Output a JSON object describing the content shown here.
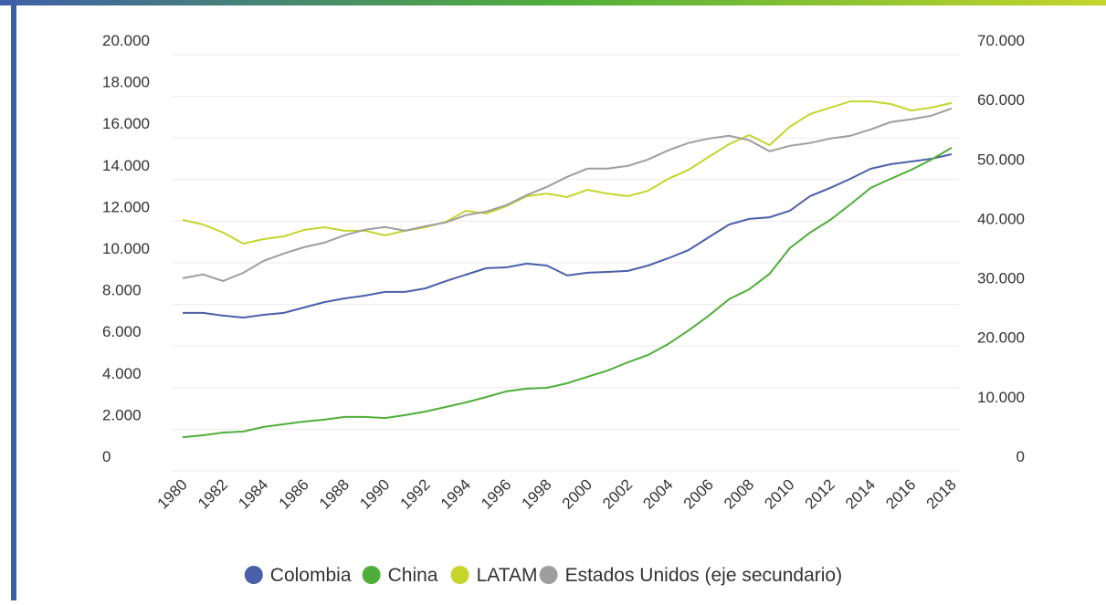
{
  "chart_data": {
    "type": "line",
    "categories": [
      "1980",
      null,
      "1982",
      null,
      "1984",
      null,
      "1986",
      null,
      "1988",
      null,
      "1990",
      null,
      "1992",
      null,
      "1994",
      null,
      "1996",
      null,
      "1998",
      null,
      "2000",
      null,
      "2002",
      null,
      "2004",
      null,
      "2006",
      null,
      "2008",
      null,
      "2010",
      null,
      "2012",
      null,
      "2014",
      null,
      "2016",
      null,
      "2018"
    ],
    "series": [
      {
        "name": "Colombia",
        "color": "#4a5fa8",
        "values": [
          7590,
          7590,
          7460,
          7370,
          7500,
          7590,
          7850,
          8110,
          8290,
          8420,
          8600,
          8600,
          8770,
          9120,
          9430,
          9740,
          9780,
          9960,
          9870,
          9390,
          9520,
          9560,
          9610,
          9870,
          10220,
          10610,
          11230,
          11840,
          12110,
          12190,
          12500,
          13200,
          13600,
          14040,
          14520,
          14740,
          14870,
          15000,
          15220
        ]
      },
      {
        "name": "China",
        "color": "#4fae3a",
        "values": [
          1620,
          1710,
          1840,
          1890,
          2110,
          2240,
          2370,
          2460,
          2590,
          2590,
          2540,
          2680,
          2850,
          3070,
          3290,
          3550,
          3820,
          3950,
          3990,
          4210,
          4520,
          4820,
          5220,
          5570,
          6100,
          6750,
          7460,
          8250,
          8730,
          9470,
          10700,
          11450,
          12060,
          12810,
          13600,
          14040,
          14470,
          14960,
          15530
        ]
      },
      {
        "name": "LATAM",
        "color": "#c5d52c",
        "values": [
          12060,
          11840,
          11450,
          10920,
          11140,
          11270,
          11580,
          11710,
          11540,
          11540,
          11320,
          11540,
          11710,
          11970,
          12500,
          12370,
          12720,
          13200,
          13330,
          13160,
          13510,
          13330,
          13200,
          13460,
          14040,
          14470,
          15090,
          15700,
          16140,
          15660,
          16540,
          17150,
          17460,
          17760,
          17760,
          17630,
          17320,
          17460,
          17680
        ]
      },
      {
        "name": "Estados Unidos (eje secundario)",
        "color": "#9e9e9e",
        "axis": "y2",
        "values": [
          32400,
          33030,
          31950,
          33330,
          35330,
          36560,
          37630,
          38400,
          39630,
          40550,
          41010,
          40400,
          41170,
          41780,
          43010,
          43630,
          44700,
          46390,
          47770,
          49460,
          50840,
          50840,
          51310,
          52380,
          53920,
          55150,
          55910,
          56370,
          55610,
          53760,
          54680,
          55150,
          55910,
          56370,
          57450,
          58680,
          59140,
          59750,
          60980
        ]
      }
    ],
    "ylim": [
      0,
      20000
    ],
    "yticks": [
      0,
      {
        "value": 2000,
        "label": "2.000"
      },
      {
        "value": 4000,
        "label": "4.000"
      },
      {
        "value": 6000,
        "label": "6.000"
      },
      {
        "value": 8000,
        "label": "8.000"
      },
      {
        "value": 10000,
        "label": "10.000"
      },
      {
        "value": 12000,
        "label": "12.000"
      },
      {
        "value": 14000,
        "label": "14.000"
      },
      {
        "value": 16000,
        "label": "16.000"
      },
      {
        "value": 18000,
        "label": "18.000"
      },
      {
        "value": 20000,
        "label": "20.000"
      }
    ],
    "y2lim": [
      0,
      70000
    ],
    "y2ticks": [
      0,
      {
        "value": 10000,
        "label": "10.000"
      },
      {
        "value": 20000,
        "label": "20.000"
      },
      {
        "value": 30000,
        "label": "30.000"
      },
      {
        "value": 40000,
        "label": "40.000"
      },
      {
        "value": 50000,
        "label": "50.000"
      },
      {
        "value": 60000,
        "label": "60.000"
      },
      {
        "value": 70000,
        "label": "70.000"
      }
    ],
    "grid": true,
    "legend": "bottom"
  }
}
